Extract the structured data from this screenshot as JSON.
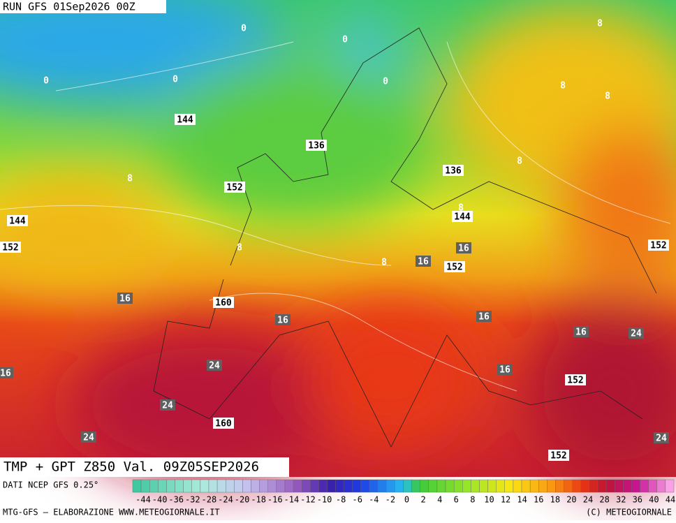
{
  "header": {
    "run": "RUN GFS 01Sep2026 00Z"
  },
  "map": {
    "title": "TMP + GPT Z850 Val. 09Z05SEP2026",
    "labels": [
      "0",
      "0",
      "0",
      "0",
      "0",
      "8",
      "8",
      "8",
      "8",
      "8",
      "8",
      "8",
      "8",
      "144",
      "144",
      "144",
      "136",
      "136",
      "152",
      "152",
      "152",
      "152",
      "152",
      "152",
      "16",
      "16",
      "16",
      "16",
      "16",
      "16",
      "16",
      "16",
      "160",
      "160",
      "24",
      "24",
      "24",
      "24",
      "24"
    ]
  },
  "legend": {
    "source": "DATI NCEP GFS 0.25°",
    "ticks": [
      "-44",
      "-40",
      "-36",
      "-32",
      "-28",
      "-24",
      "-20",
      "-18",
      "-16",
      "-14",
      "-12",
      "-10",
      "-8",
      "-6",
      "-4",
      "-2",
      "0",
      "2",
      "4",
      "6",
      "8",
      "10",
      "12",
      "14",
      "16",
      "18",
      "20",
      "24",
      "28",
      "32",
      "36",
      "40",
      "44"
    ]
  },
  "footer": {
    "left": "MTG-GFS – ELABORAZIONE WWW.METEOGIORNALE.IT",
    "right": "(C) METEOGIORNALE"
  }
}
